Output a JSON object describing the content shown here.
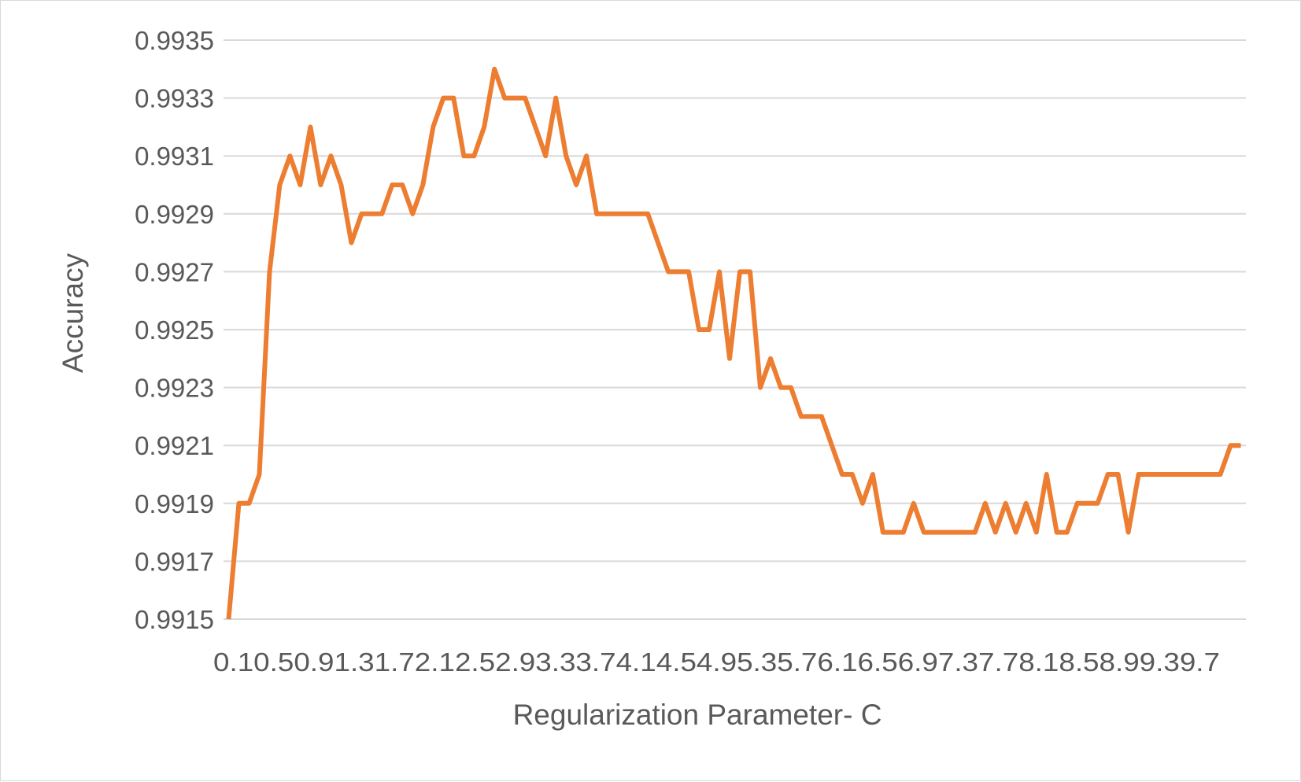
{
  "chart_data": {
    "type": "line",
    "xlabel": "Regularization Parameter- C",
    "ylabel": "Accuracy",
    "ylim": [
      0.9915,
      0.9935
    ],
    "y_ticks": [
      "0.9915",
      "0.9917",
      "0.9919",
      "0.9921",
      "0.9923",
      "0.9925",
      "0.9927",
      "0.9929",
      "0.9931",
      "0.9933",
      "0.9935"
    ],
    "x": [
      0.1,
      0.2,
      0.3,
      0.4,
      0.5,
      0.6,
      0.7,
      0.8,
      0.9,
      1.0,
      1.1,
      1.2,
      1.3,
      1.4,
      1.5,
      1.6,
      1.7,
      1.8,
      1.9,
      2.0,
      2.1,
      2.2,
      2.3,
      2.4,
      2.5,
      2.6,
      2.7,
      2.8,
      2.9,
      3.0,
      3.1,
      3.2,
      3.3,
      3.4,
      3.5,
      3.6,
      3.7,
      3.8,
      3.9,
      4.0,
      4.1,
      4.2,
      4.3,
      4.4,
      4.5,
      4.6,
      4.7,
      4.8,
      4.9,
      5.0,
      5.1,
      5.2,
      5.3,
      5.4,
      5.5,
      5.6,
      5.7,
      5.8,
      5.9,
      6.0,
      6.1,
      6.2,
      6.3,
      6.4,
      6.5,
      6.6,
      6.7,
      6.8,
      6.9,
      7.0,
      7.1,
      7.2,
      7.3,
      7.4,
      7.5,
      7.6,
      7.7,
      7.8,
      7.9,
      8.0,
      8.1,
      8.2,
      8.3,
      8.4,
      8.5,
      8.6,
      8.7,
      8.8,
      8.9,
      9.0,
      9.1,
      9.2,
      9.3,
      9.4,
      9.5,
      9.6,
      9.7,
      9.8,
      9.9,
      10.0
    ],
    "x_tick_text": "0.10.50.91.31.72.12.52.93.33.74.14.54.95.35.76.16.56.97.37.78.18.58.99.39.7",
    "series": [
      {
        "color": "#ed7d31",
        "values": [
          0.9915,
          0.9919,
          0.9919,
          0.992,
          0.9927,
          0.993,
          0.9931,
          0.993,
          0.9932,
          0.993,
          0.9931,
          0.993,
          0.9928,
          0.9929,
          0.9929,
          0.9929,
          0.993,
          0.993,
          0.9929,
          0.993,
          0.9932,
          0.9933,
          0.9933,
          0.9931,
          0.9931,
          0.9932,
          0.9934,
          0.9933,
          0.9933,
          0.9933,
          0.9932,
          0.9931,
          0.9933,
          0.9931,
          0.993,
          0.9931,
          0.9929,
          0.9929,
          0.9929,
          0.9929,
          0.9929,
          0.9929,
          0.9928,
          0.9927,
          0.9927,
          0.9927,
          0.9925,
          0.9925,
          0.9927,
          0.9924,
          0.9927,
          0.9927,
          0.9923,
          0.9924,
          0.9923,
          0.9923,
          0.9922,
          0.9922,
          0.9922,
          0.9921,
          0.992,
          0.992,
          0.9919,
          0.992,
          0.9918,
          0.9918,
          0.9918,
          0.9919,
          0.9918,
          0.9918,
          0.9918,
          0.9918,
          0.9918,
          0.9918,
          0.9919,
          0.9918,
          0.9919,
          0.9918,
          0.9919,
          0.9918,
          0.992,
          0.9918,
          0.9918,
          0.9919,
          0.9919,
          0.9919,
          0.992,
          0.992,
          0.9918,
          0.992,
          0.992,
          0.992,
          0.992,
          0.992,
          0.992,
          0.992,
          0.992,
          0.992,
          0.9921,
          0.9921
        ]
      }
    ],
    "grid": true,
    "legend": "none"
  }
}
